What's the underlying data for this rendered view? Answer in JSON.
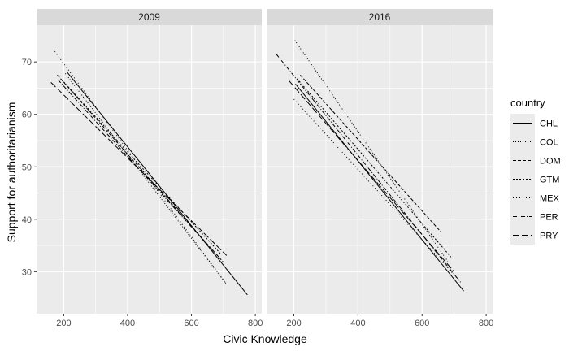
{
  "chart_data": {
    "type": "line",
    "xlabel": "Civic Knowledge",
    "ylabel": "Support for authoritarianism",
    "xlim": [
      115,
      820
    ],
    "ylim": [
      22,
      77
    ],
    "xticks": [
      200,
      400,
      600,
      800
    ],
    "yticks": [
      30,
      40,
      50,
      60,
      70
    ],
    "grid": true,
    "legend": {
      "title": "country",
      "placement": "right",
      "entries": [
        "CHL",
        "COL",
        "DOM",
        "GTM",
        "MEX",
        "PER",
        "PRY"
      ]
    },
    "panels": [
      {
        "title": "2009",
        "series": [
          {
            "name": "CHL",
            "x": [
              210,
              775
            ],
            "y": [
              68.1,
              25.6
            ]
          },
          {
            "name": "COL",
            "x": [
              205,
              710
            ],
            "y": [
              67.8,
              27.6
            ]
          },
          {
            "name": "DOM",
            "x": [
              180,
              700
            ],
            "y": [
              67.5,
              31.8
            ]
          },
          {
            "name": "GTM",
            "x": [
              200,
              690
            ],
            "y": [
              66.2,
              33.5
            ]
          },
          {
            "name": "MEX",
            "x": [
              172,
              705
            ],
            "y": [
              72.0,
              28.0
            ]
          },
          {
            "name": "PER",
            "x": [
              182,
              690
            ],
            "y": [
              66.6,
              32.5
            ]
          },
          {
            "name": "PRY",
            "x": [
              160,
              710
            ],
            "y": [
              66.1,
              33.1
            ]
          }
        ]
      },
      {
        "title": "2016",
        "series": [
          {
            "name": "CHL",
            "x": [
              205,
              730
            ],
            "y": [
              65.8,
              26.3
            ]
          },
          {
            "name": "COL",
            "x": [
              203,
              680
            ],
            "y": [
              74.1,
              32.0
            ]
          },
          {
            "name": "DOM",
            "x": [
              220,
              660
            ],
            "y": [
              67.5,
              37.5
            ]
          },
          {
            "name": "GTM",
            "x": [
              210,
              690
            ],
            "y": [
              66.8,
              32.8
            ]
          },
          {
            "name": "MEX",
            "x": [
              200,
              715
            ],
            "y": [
              62.9,
              28.4
            ]
          },
          {
            "name": "PER",
            "x": [
              145,
              720
            ],
            "y": [
              71.5,
              28.0
            ]
          },
          {
            "name": "PRY",
            "x": [
              185,
              700
            ],
            "y": [
              66.4,
              30.0
            ]
          }
        ]
      }
    ]
  },
  "styles": {
    "panel_bg": "#ebebeb",
    "strip_bg": "#d9d9d9",
    "grid_color": "#ffffff",
    "line_color": "#000000",
    "dash_patterns": {
      "CHL": "",
      "COL": "1 2",
      "DOM": "4 2",
      "GTM": "2 2",
      "MEX": "1 3",
      "PER": "5 2 1 2",
      "PRY": "8 3"
    }
  }
}
